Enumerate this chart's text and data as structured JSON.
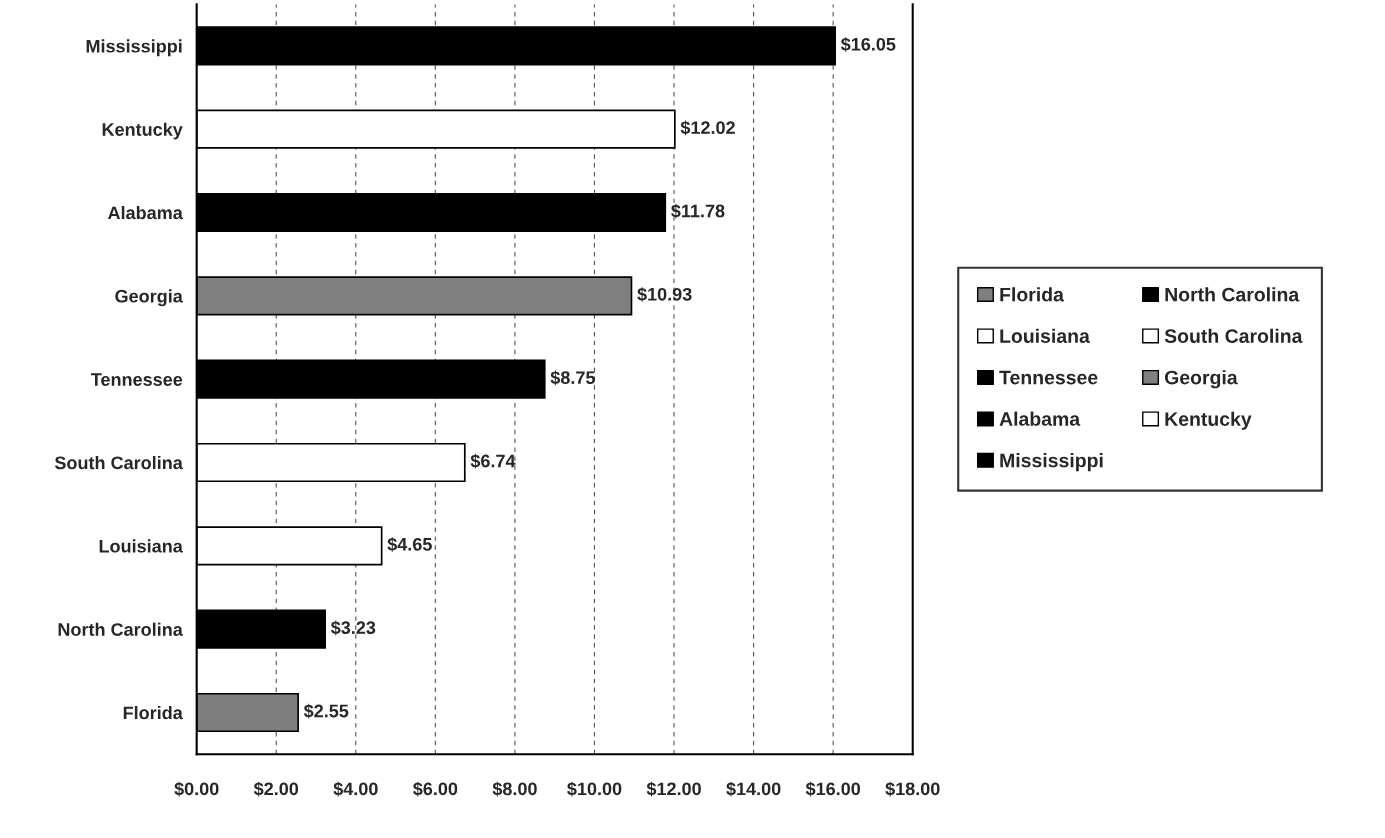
{
  "chart_data": {
    "type": "bar",
    "orientation": "horizontal",
    "categories": [
      "Mississippi",
      "Kentucky",
      "Alabama",
      "Georgia",
      "Tennessee",
      "South Carolina",
      "Louisiana",
      "North Carolina",
      "Florida"
    ],
    "series": [
      {
        "name": "Florida",
        "color": "#7f7f7f",
        "values": [
          null,
          null,
          null,
          null,
          null,
          null,
          null,
          null,
          2.55
        ],
        "value_labels": [
          null,
          null,
          null,
          null,
          null,
          null,
          null,
          null,
          "$2.55"
        ]
      },
      {
        "name": "North Carolina",
        "color": "#000000",
        "values": [
          null,
          null,
          null,
          null,
          null,
          null,
          null,
          3.23,
          null
        ],
        "value_labels": [
          null,
          null,
          null,
          null,
          null,
          null,
          null,
          "$3.23",
          null
        ]
      },
      {
        "name": "Louisiana",
        "color": "#ffffff",
        "values": [
          null,
          null,
          null,
          null,
          null,
          null,
          4.65,
          null,
          null
        ],
        "value_labels": [
          null,
          null,
          null,
          null,
          null,
          null,
          "$4.65",
          null,
          null
        ]
      },
      {
        "name": "South Carolina",
        "color": "#ffffff",
        "values": [
          null,
          null,
          null,
          null,
          null,
          6.74,
          null,
          null,
          null
        ],
        "value_labels": [
          null,
          null,
          null,
          null,
          null,
          "$6.74",
          null,
          null,
          null
        ]
      },
      {
        "name": "Tennessee",
        "color": "#000000",
        "values": [
          null,
          null,
          null,
          null,
          8.75,
          null,
          null,
          null,
          null
        ],
        "value_labels": [
          null,
          null,
          null,
          null,
          "$8.75",
          null,
          null,
          null,
          null
        ]
      },
      {
        "name": "Georgia",
        "color": "#808080",
        "values": [
          null,
          null,
          null,
          10.93,
          null,
          null,
          null,
          null,
          null
        ],
        "value_labels": [
          null,
          null,
          null,
          "$10.93",
          null,
          null,
          null,
          null,
          null
        ]
      },
      {
        "name": "Alabama",
        "color": "#000000",
        "values": [
          null,
          null,
          11.78,
          null,
          null,
          null,
          null,
          null,
          null
        ],
        "value_labels": [
          null,
          null,
          "$11.78",
          null,
          null,
          null,
          null,
          null,
          null
        ]
      },
      {
        "name": "Kentucky",
        "color": "#ffffff",
        "values": [
          null,
          12.02,
          null,
          null,
          null,
          null,
          null,
          null,
          null
        ],
        "value_labels": [
          null,
          "$12.02",
          null,
          null,
          null,
          null,
          null,
          null,
          null
        ]
      },
      {
        "name": "Mississippi",
        "color": "#000000",
        "values": [
          16.05,
          null,
          null,
          null,
          null,
          null,
          null,
          null,
          null
        ],
        "value_labels": [
          "$16.05",
          null,
          null,
          null,
          null,
          null,
          null,
          null,
          null
        ]
      }
    ],
    "xlim": [
      0,
      18
    ],
    "xticks": [
      {
        "value": 0,
        "label": "$0.00"
      },
      {
        "value": 2,
        "label": "$2.00"
      },
      {
        "value": 4,
        "label": "$4.00"
      },
      {
        "value": 6,
        "label": "$6.00"
      },
      {
        "value": 8,
        "label": "$8.00"
      },
      {
        "value": 10,
        "label": "$10.00"
      },
      {
        "value": 12,
        "label": "$12.00"
      },
      {
        "value": 14,
        "label": "$14.00"
      },
      {
        "value": 16,
        "label": "$16.00"
      },
      {
        "value": 18,
        "label": "$18.00"
      }
    ],
    "grid": "x",
    "legend": "right"
  }
}
